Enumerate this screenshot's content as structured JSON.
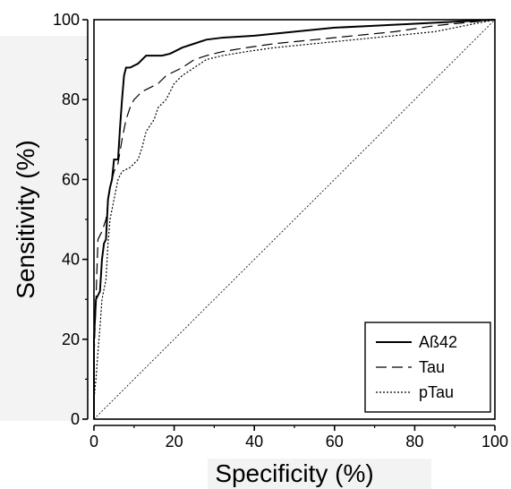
{
  "chart_data": {
    "type": "line",
    "xlabel": "Specificity (%)",
    "ylabel": "Sensitivity (%)",
    "xlim": [
      0,
      100
    ],
    "ylim": [
      0,
      100
    ],
    "xticks": [
      0,
      20,
      40,
      60,
      80,
      100
    ],
    "yticks": [
      0,
      20,
      40,
      60,
      80,
      100
    ],
    "legend_position": "bottom-right",
    "reference_line": {
      "from": [
        0,
        0
      ],
      "to": [
        100,
        100
      ],
      "style": "dotted"
    },
    "series": [
      {
        "name": "Aß42",
        "style": "solid",
        "points": [
          [
            0,
            0
          ],
          [
            0,
            20
          ],
          [
            0.5,
            30
          ],
          [
            1.5,
            32
          ],
          [
            2,
            40
          ],
          [
            2.5,
            44
          ],
          [
            3,
            45
          ],
          [
            3.5,
            55
          ],
          [
            4,
            58
          ],
          [
            4.5,
            60
          ],
          [
            5,
            65
          ],
          [
            6,
            65
          ],
          [
            6.5,
            73
          ],
          [
            7,
            80
          ],
          [
            7.5,
            86
          ],
          [
            8,
            88
          ],
          [
            9,
            88
          ],
          [
            10,
            88.5
          ],
          [
            11,
            89
          ],
          [
            12,
            90
          ],
          [
            13,
            91
          ],
          [
            15,
            91
          ],
          [
            17,
            91
          ],
          [
            19,
            91.5
          ],
          [
            20,
            92
          ],
          [
            22,
            93
          ],
          [
            25,
            94
          ],
          [
            28,
            95
          ],
          [
            32,
            95.5
          ],
          [
            40,
            96
          ],
          [
            50,
            97
          ],
          [
            60,
            98
          ],
          [
            70,
            98.5
          ],
          [
            80,
            99
          ],
          [
            90,
            99.5
          ],
          [
            100,
            100
          ]
        ]
      },
      {
        "name": "Tau",
        "style": "dashed",
        "points": [
          [
            0,
            0
          ],
          [
            0,
            15
          ],
          [
            0.5,
            30
          ],
          [
            1,
            45
          ],
          [
            2,
            47
          ],
          [
            3,
            50
          ],
          [
            4,
            58
          ],
          [
            5,
            62
          ],
          [
            6,
            64
          ],
          [
            7,
            70
          ],
          [
            8,
            75
          ],
          [
            9,
            78
          ],
          [
            10,
            80
          ],
          [
            11,
            81
          ],
          [
            12,
            82
          ],
          [
            14,
            83
          ],
          [
            16,
            84
          ],
          [
            18,
            86
          ],
          [
            20,
            87
          ],
          [
            22,
            88
          ],
          [
            25,
            90
          ],
          [
            28,
            91
          ],
          [
            32,
            92
          ],
          [
            38,
            93
          ],
          [
            45,
            94
          ],
          [
            55,
            95
          ],
          [
            65,
            96
          ],
          [
            75,
            97
          ],
          [
            85,
            98.5
          ],
          [
            95,
            99.5
          ],
          [
            100,
            100
          ]
        ]
      },
      {
        "name": "pTau",
        "style": "dotted",
        "points": [
          [
            0,
            0
          ],
          [
            0,
            5
          ],
          [
            0.5,
            10
          ],
          [
            1,
            17
          ],
          [
            1.5,
            23
          ],
          [
            2,
            30
          ],
          [
            3,
            35
          ],
          [
            3.5,
            44
          ],
          [
            4,
            50
          ],
          [
            5,
            55
          ],
          [
            6,
            60
          ],
          [
            7,
            62
          ],
          [
            9,
            63
          ],
          [
            11,
            65
          ],
          [
            12,
            68
          ],
          [
            13,
            72
          ],
          [
            15,
            75
          ],
          [
            16,
            78
          ],
          [
            17,
            79
          ],
          [
            18,
            80
          ],
          [
            20,
            84
          ],
          [
            22,
            86
          ],
          [
            25,
            88
          ],
          [
            28,
            90
          ],
          [
            32,
            91
          ],
          [
            38,
            92
          ],
          [
            45,
            93
          ],
          [
            55,
            94
          ],
          [
            65,
            95
          ],
          [
            75,
            96
          ],
          [
            85,
            97
          ],
          [
            95,
            99
          ],
          [
            100,
            100
          ]
        ]
      }
    ]
  }
}
